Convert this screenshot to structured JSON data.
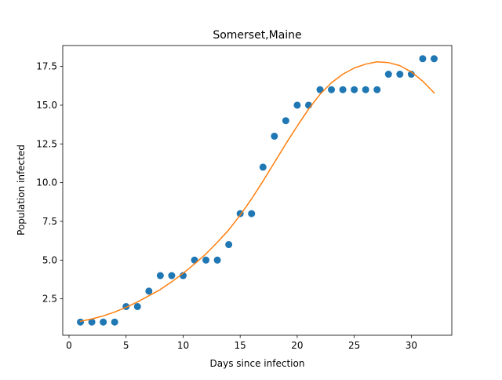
{
  "chart_data": {
    "type": "scatter",
    "title": "Somerset,Maine",
    "xlabel": "Days since infection",
    "ylabel": "Population infected",
    "xlim": [
      -0.55,
      33.55
    ],
    "ylim": [
      0.15,
      18.85
    ],
    "xticks": [
      0,
      5,
      10,
      15,
      20,
      25,
      30
    ],
    "xtick_labels": [
      "0",
      "5",
      "10",
      "15",
      "20",
      "25",
      "30"
    ],
    "yticks": [
      2.5,
      5.0,
      7.5,
      10.0,
      12.5,
      15.0,
      17.5
    ],
    "ytick_labels": [
      "2.5",
      "5.0",
      "7.5",
      "10.0",
      "12.5",
      "15.0",
      "17.5"
    ],
    "grid": false,
    "series": [
      {
        "kind": "scatter",
        "color": "#1f77b4",
        "x": [
          1,
          2,
          3,
          4,
          5,
          6,
          7,
          8,
          9,
          10,
          11,
          12,
          13,
          14,
          15,
          16,
          17,
          18,
          19,
          20,
          21,
          22,
          23,
          24,
          25,
          26,
          27,
          28,
          29,
          30,
          31,
          32
        ],
        "y": [
          1,
          1,
          1,
          1,
          2,
          2,
          3,
          4,
          4,
          4,
          5,
          5,
          5,
          6,
          8,
          8,
          11,
          13,
          14,
          15,
          15,
          16,
          16,
          16,
          16,
          16,
          16,
          17,
          17,
          17,
          18,
          18
        ]
      },
      {
        "kind": "line",
        "color": "#ff7f0e",
        "x": [
          1,
          2,
          3,
          4,
          5,
          6,
          7,
          8,
          9,
          10,
          11,
          12,
          13,
          14,
          15,
          16,
          17,
          18,
          19,
          20,
          21,
          22,
          23,
          24,
          25,
          26,
          27,
          28,
          29,
          30,
          31,
          32
        ],
        "y": [
          1.05,
          1.2,
          1.4,
          1.65,
          1.95,
          2.3,
          2.7,
          3.1,
          3.6,
          4.15,
          4.75,
          5.4,
          6.15,
          6.95,
          7.9,
          8.95,
          10.1,
          11.3,
          12.5,
          13.65,
          14.75,
          15.7,
          16.45,
          17.0,
          17.4,
          17.65,
          17.8,
          17.75,
          17.55,
          17.15,
          16.55,
          15.8
        ]
      }
    ]
  }
}
